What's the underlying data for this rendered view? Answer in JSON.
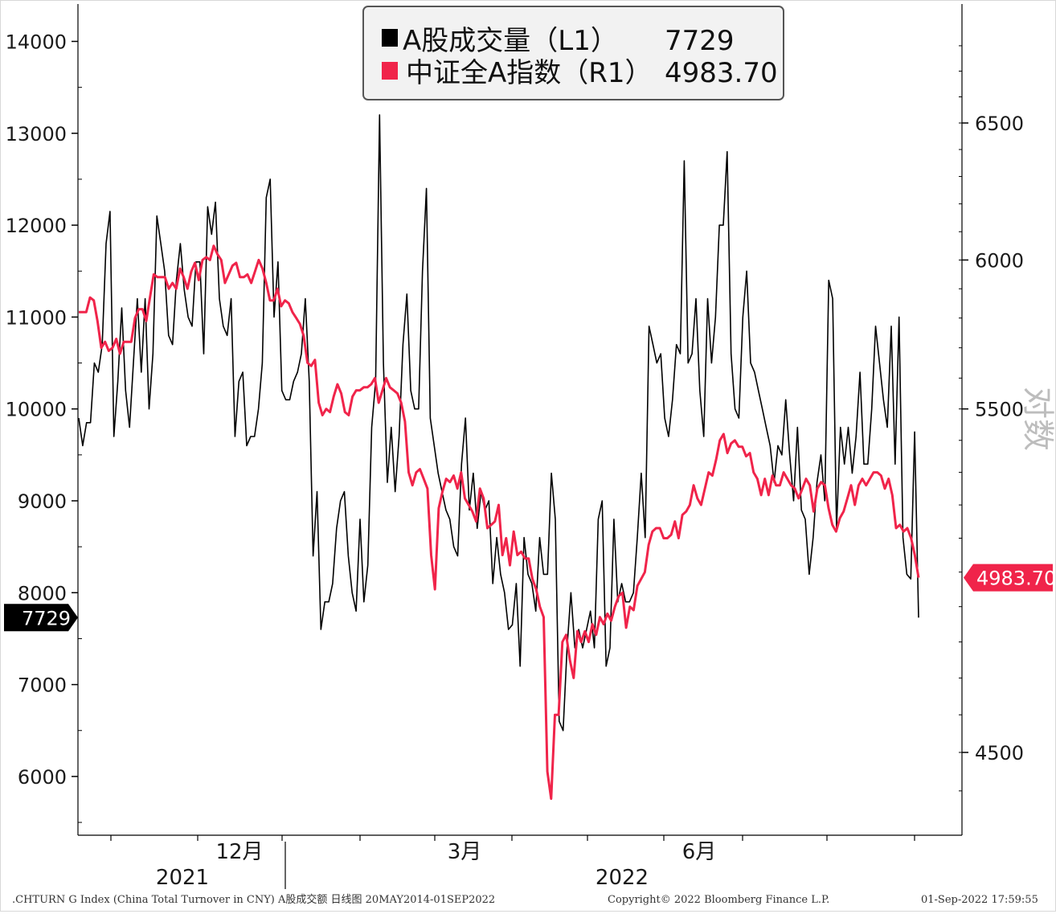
{
  "legend": {
    "items": [
      {
        "label": "A股成交量（L1）",
        "value": "7729",
        "color": "#000000"
      },
      {
        "label": "中证全A指数（R1）",
        "value": "4983.70",
        "color": "#f0244a"
      }
    ]
  },
  "badges": {
    "left": "7729",
    "right": "4983.70"
  },
  "right_axis_title": "对数",
  "footer": {
    "left": ".CHTURN G Index (China Total Turnover in CNY) A股成交额   日线图 20MAY2014-01SEP2022",
    "center": "Copyright© 2022 Bloomberg Finance L.P.",
    "right": "01-Sep-2022 17:59:55"
  },
  "chart_data": {
    "type": "line",
    "x_tick_labels": [
      "12月",
      "3月",
      "6月"
    ],
    "year_labels": [
      "2021",
      "2022"
    ],
    "left_axis": {
      "ylim": [
        5500,
        14700
      ],
      "ticks": [
        6000,
        7000,
        8000,
        9000,
        10000,
        11000,
        12000,
        13000,
        14000
      ]
    },
    "right_axis": {
      "scale": "log",
      "ylim": [
        4300,
        6850
      ],
      "ticks": [
        4500,
        5500,
        6000,
        6500
      ],
      "title": "对数"
    },
    "series": [
      {
        "name": "A股成交量（L1）",
        "axis": "left",
        "color": "#000000",
        "values": [
          9900,
          9600,
          9850,
          9850,
          10500,
          10400,
          10700,
          11800,
          12150,
          9700,
          10300,
          11100,
          10200,
          9800,
          10500,
          11200,
          10400,
          11200,
          10000,
          10600,
          12100,
          11800,
          11500,
          10800,
          10700,
          11400,
          11800,
          11300,
          11000,
          10900,
          11600,
          11600,
          10600,
          12200,
          11900,
          12250,
          11200,
          10900,
          10800,
          11200,
          9700,
          10300,
          10400,
          9600,
          9700,
          9700,
          10000,
          10500,
          12300,
          12500,
          11000,
          11600,
          10200,
          10100,
          10100,
          10300,
          10400,
          10600,
          11200,
          10300,
          8400,
          9100,
          7600,
          7900,
          7900,
          8100,
          8700,
          9000,
          9100,
          8400,
          8000,
          7800,
          8800,
          7900,
          8300,
          9800,
          10300,
          13200,
          10500,
          9200,
          9800,
          9100,
          9700,
          10700,
          11250,
          10200,
          10000,
          10000,
          11500,
          12400,
          9900,
          9600,
          9300,
          9100,
          8900,
          8800,
          8500,
          8400,
          9400,
          9900,
          8900,
          9300,
          8700,
          9100,
          8900,
          9000,
          8100,
          8600,
          8200,
          8000,
          7600,
          7650,
          8100,
          7200,
          8600,
          8200,
          8100,
          7800,
          8600,
          8200,
          8200,
          9300,
          8800,
          6600,
          6500,
          7400,
          8000,
          7400,
          7600,
          7400,
          7600,
          7800,
          7400,
          8800,
          9000,
          7200,
          7400,
          8800,
          7900,
          8100,
          7900,
          7900,
          8000,
          8600,
          9300,
          8600,
          10900,
          10700,
          10500,
          10600,
          9900,
          9700,
          10100,
          10700,
          10600,
          12700,
          10500,
          10600,
          11200,
          10200,
          9700,
          11200,
          10500,
          11000,
          12000,
          12000,
          12800,
          10600,
          10000,
          9900,
          11000,
          11500,
          10500,
          10400,
          10200,
          10000,
          9800,
          9600,
          9200,
          9600,
          9500,
          10100,
          9500,
          9000,
          9800,
          8900,
          8800,
          8200,
          8600,
          9200,
          9500,
          9000,
          11400,
          11200,
          8700,
          9800,
          9400,
          9800,
          9300,
          9700,
          10400,
          9400,
          9400,
          10000,
          10900,
          10500,
          10100,
          9800,
          10900,
          9400,
          11000,
          8600,
          8200,
          8150,
          9750,
          7729
        ]
      },
      {
        "name": "中证全A指数（R1）",
        "axis": "right",
        "color": "#f0244a",
        "values": [
          5820,
          5820,
          5820,
          5870,
          5860,
          5790,
          5700,
          5720,
          5690,
          5700,
          5730,
          5680,
          5720,
          5720,
          5720,
          5800,
          5830,
          5830,
          5790,
          5870,
          5950,
          5940,
          5940,
          5940,
          5900,
          5920,
          5900,
          5970,
          5940,
          5900,
          5960,
          5990,
          5930,
          6000,
          6010,
          6000,
          6050,
          6020,
          6000,
          5920,
          5950,
          5980,
          5990,
          5940,
          5940,
          5950,
          5920,
          5960,
          6000,
          5970,
          5920,
          5860,
          5860,
          5900,
          5840,
          5860,
          5850,
          5820,
          5800,
          5780,
          5740,
          5650,
          5640,
          5660,
          5520,
          5480,
          5500,
          5490,
          5540,
          5580,
          5550,
          5490,
          5480,
          5540,
          5560,
          5560,
          5570,
          5570,
          5580,
          5600,
          5520,
          5560,
          5600,
          5570,
          5560,
          5550,
          5520,
          5460,
          5300,
          5260,
          5300,
          5310,
          5280,
          5250,
          5050,
          4950,
          5190,
          5240,
          5280,
          5270,
          5290,
          5250,
          5300,
          5220,
          5200,
          5180,
          5150,
          5250,
          5220,
          5130,
          5140,
          5150,
          5200,
          5050,
          5100,
          5020,
          5120,
          5050,
          5060,
          5040,
          5040,
          4980,
          4950,
          4900,
          4870,
          4450,
          4380,
          4600,
          4600,
          4800,
          4820,
          4750,
          4700,
          4830,
          4800,
          4830,
          4800,
          4850,
          4820,
          4870,
          4850,
          4880,
          4860,
          4900,
          4930,
          4940,
          4840,
          4900,
          4890,
          4960,
          4980,
          5000,
          5080,
          5120,
          5130,
          5130,
          5100,
          5100,
          5110,
          5150,
          5100,
          5170,
          5180,
          5200,
          5260,
          5220,
          5200,
          5250,
          5300,
          5290,
          5340,
          5400,
          5420,
          5360,
          5390,
          5400,
          5380,
          5380,
          5350,
          5360,
          5300,
          5280,
          5230,
          5280,
          5230,
          5290,
          5260,
          5260,
          5300,
          5280,
          5260,
          5250,
          5220,
          5250,
          5280,
          5260,
          5180,
          5250,
          5270,
          5260,
          5190,
          5140,
          5120,
          5160,
          5180,
          5220,
          5260,
          5200,
          5260,
          5280,
          5260,
          5280,
          5300,
          5300,
          5290,
          5250,
          5280,
          5230,
          5130,
          5140,
          5120,
          5130,
          5100,
          5050,
          4983.7
        ]
      }
    ]
  }
}
